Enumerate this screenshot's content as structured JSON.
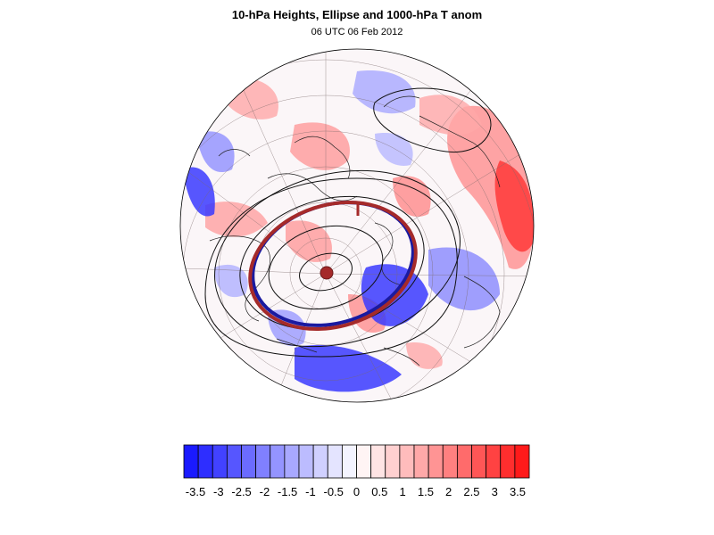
{
  "figure": {
    "title": "10-hPa Heights, Ellipse and 1000-hPa T anom",
    "subtitle": "06 UTC 06 Feb 2012"
  },
  "colorbar": {
    "colors": [
      "#1a1aff",
      "#2e2eff",
      "#4242ff",
      "#5656ff",
      "#6b6bff",
      "#8080ff",
      "#9494ff",
      "#a8a8ff",
      "#bcbcff",
      "#d0d0ff",
      "#e4e4ff",
      "#f4f4ff",
      "#fff4f4",
      "#ffe4e4",
      "#ffd0d0",
      "#ffbcbc",
      "#ffa8a8",
      "#ff9494",
      "#ff8080",
      "#ff6b6b",
      "#ff5656",
      "#ff4242",
      "#ff2e2e",
      "#ff1a1a"
    ],
    "labels": [
      "-3.5",
      "-3",
      "-2.5",
      "-2",
      "-1.5",
      "-1",
      "-0.5",
      "0",
      "0.5",
      "1",
      "1.5",
      "2",
      "2.5",
      "3",
      "3.5"
    ]
  },
  "map": {
    "ellipse_colors": {
      "observed": "#1a1aa0",
      "fitted": "#a52a2a"
    }
  }
}
